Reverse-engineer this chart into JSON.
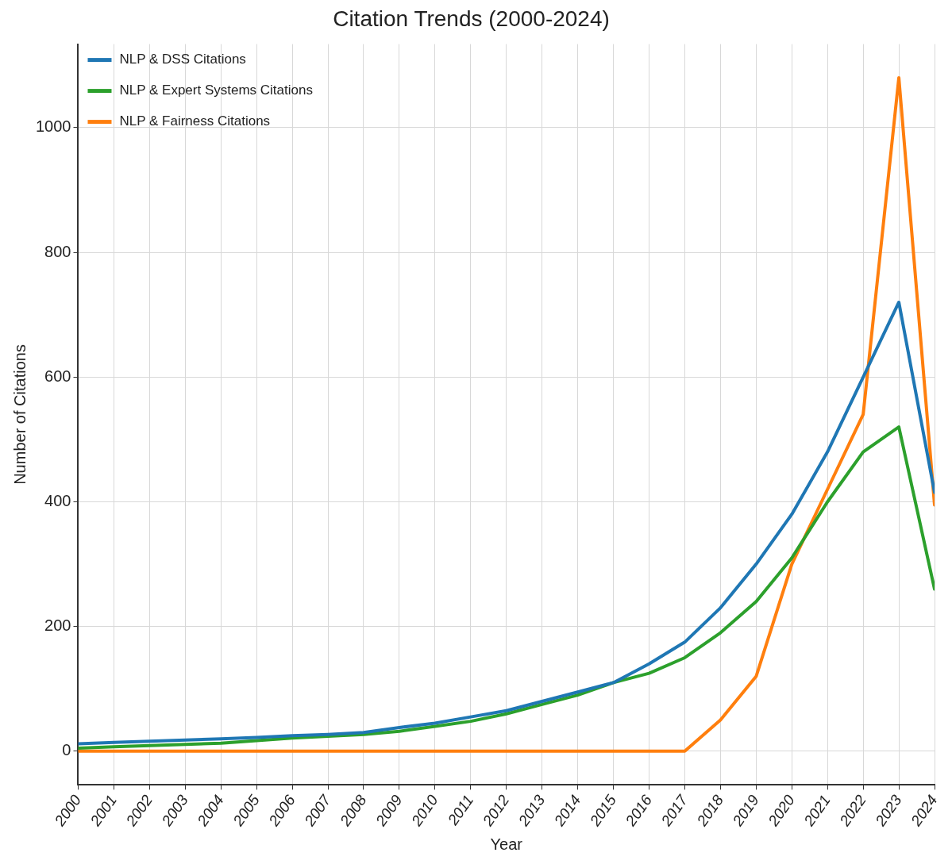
{
  "chart_data": {
    "type": "line",
    "title": "Citation Trends (2000-2024)",
    "xlabel": "Year",
    "ylabel": "Number of Citations",
    "x": [
      2000,
      2001,
      2002,
      2003,
      2004,
      2005,
      2006,
      2007,
      2008,
      2009,
      2010,
      2011,
      2012,
      2013,
      2014,
      2015,
      2016,
      2017,
      2018,
      2019,
      2020,
      2021,
      2022,
      2023,
      2024
    ],
    "series": [
      {
        "name": "NLP & DSS Citations",
        "color": "#1f77b4",
        "values": [
          12,
          14,
          16,
          18,
          20,
          22,
          25,
          27,
          30,
          38,
          45,
          55,
          65,
          80,
          95,
          110,
          140,
          175,
          230,
          300,
          380,
          480,
          600,
          720,
          415
        ]
      },
      {
        "name": "NLP & Expert Systems Citations",
        "color": "#2ca02c",
        "values": [
          5,
          7,
          9,
          11,
          13,
          17,
          21,
          24,
          27,
          32,
          40,
          48,
          60,
          75,
          90,
          110,
          125,
          150,
          190,
          240,
          310,
          400,
          480,
          520,
          260
        ]
      },
      {
        "name": "NLP & Fairness Citations",
        "color": "#ff7f0e",
        "values": [
          0,
          0,
          0,
          0,
          0,
          0,
          0,
          0,
          0,
          0,
          0,
          0,
          0,
          0,
          0,
          0,
          0,
          0,
          50,
          120,
          300,
          420,
          540,
          1080,
          395
        ]
      }
    ],
    "xlim": [
      2000,
      2024
    ],
    "xticks": [
      2000,
      2001,
      2002,
      2003,
      2004,
      2005,
      2006,
      2007,
      2008,
      2009,
      2010,
      2011,
      2012,
      2013,
      2014,
      2015,
      2016,
      2017,
      2018,
      2019,
      2020,
      2021,
      2022,
      2023,
      2024
    ],
    "ylim": [
      -54,
      1134
    ],
    "yticks": [
      0,
      200,
      400,
      600,
      800,
      1000
    ],
    "grid": true,
    "legend": "top left",
    "line_style": "solid",
    "marker": "none"
  }
}
